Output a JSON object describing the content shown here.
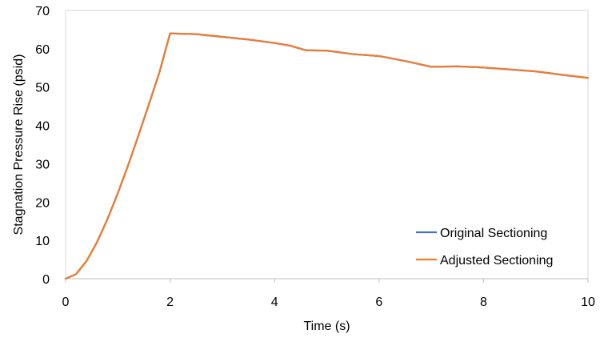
{
  "chart_data": {
    "type": "line",
    "title": "",
    "xlabel": "Time (s)",
    "ylabel": "Stagnation Pressure Rise (psid)",
    "xlim": [
      0,
      10
    ],
    "ylim": [
      0,
      70
    ],
    "xticks": [
      0,
      2,
      4,
      6,
      8,
      10
    ],
    "yticks": [
      0,
      10,
      20,
      30,
      40,
      50,
      60,
      70
    ],
    "grid": false,
    "legend_position": "bottom-right",
    "series": [
      {
        "name": "Original Sectioning",
        "color": "#4472C4",
        "x": [
          0,
          0.2,
          0.4,
          0.6,
          0.8,
          1.0,
          1.2,
          1.4,
          1.6,
          1.8,
          2.0,
          2.5,
          3.0,
          3.5,
          4.0,
          4.3,
          4.6,
          5.0,
          5.5,
          6.0,
          6.5,
          7.0,
          7.5,
          8.0,
          8.5,
          9.0,
          9.5,
          10.0
        ],
        "y": [
          0,
          1.2,
          4.6,
          9.5,
          15.5,
          22.3,
          29.7,
          37.6,
          45.7,
          54.0,
          64.0,
          63.8,
          63.1,
          62.4,
          61.5,
          60.8,
          59.6,
          59.5,
          58.6,
          58.1,
          56.8,
          55.3,
          55.4,
          55.1,
          54.6,
          54.1,
          53.2,
          52.4
        ]
      },
      {
        "name": "Adjusted Sectioning",
        "color": "#ED7D31",
        "x": [
          0,
          0.2,
          0.4,
          0.6,
          0.8,
          1.0,
          1.2,
          1.4,
          1.6,
          1.8,
          2.0,
          2.5,
          3.0,
          3.5,
          4.0,
          4.3,
          4.6,
          5.0,
          5.5,
          6.0,
          6.5,
          7.0,
          7.5,
          8.0,
          8.5,
          9.0,
          9.5,
          10.0
        ],
        "y": [
          0,
          1.2,
          4.6,
          9.5,
          15.5,
          22.3,
          29.7,
          37.6,
          45.7,
          54.0,
          64.0,
          63.8,
          63.1,
          62.4,
          61.5,
          60.8,
          59.6,
          59.5,
          58.6,
          58.1,
          56.8,
          55.3,
          55.4,
          55.1,
          54.6,
          54.1,
          53.2,
          52.4
        ]
      }
    ]
  }
}
